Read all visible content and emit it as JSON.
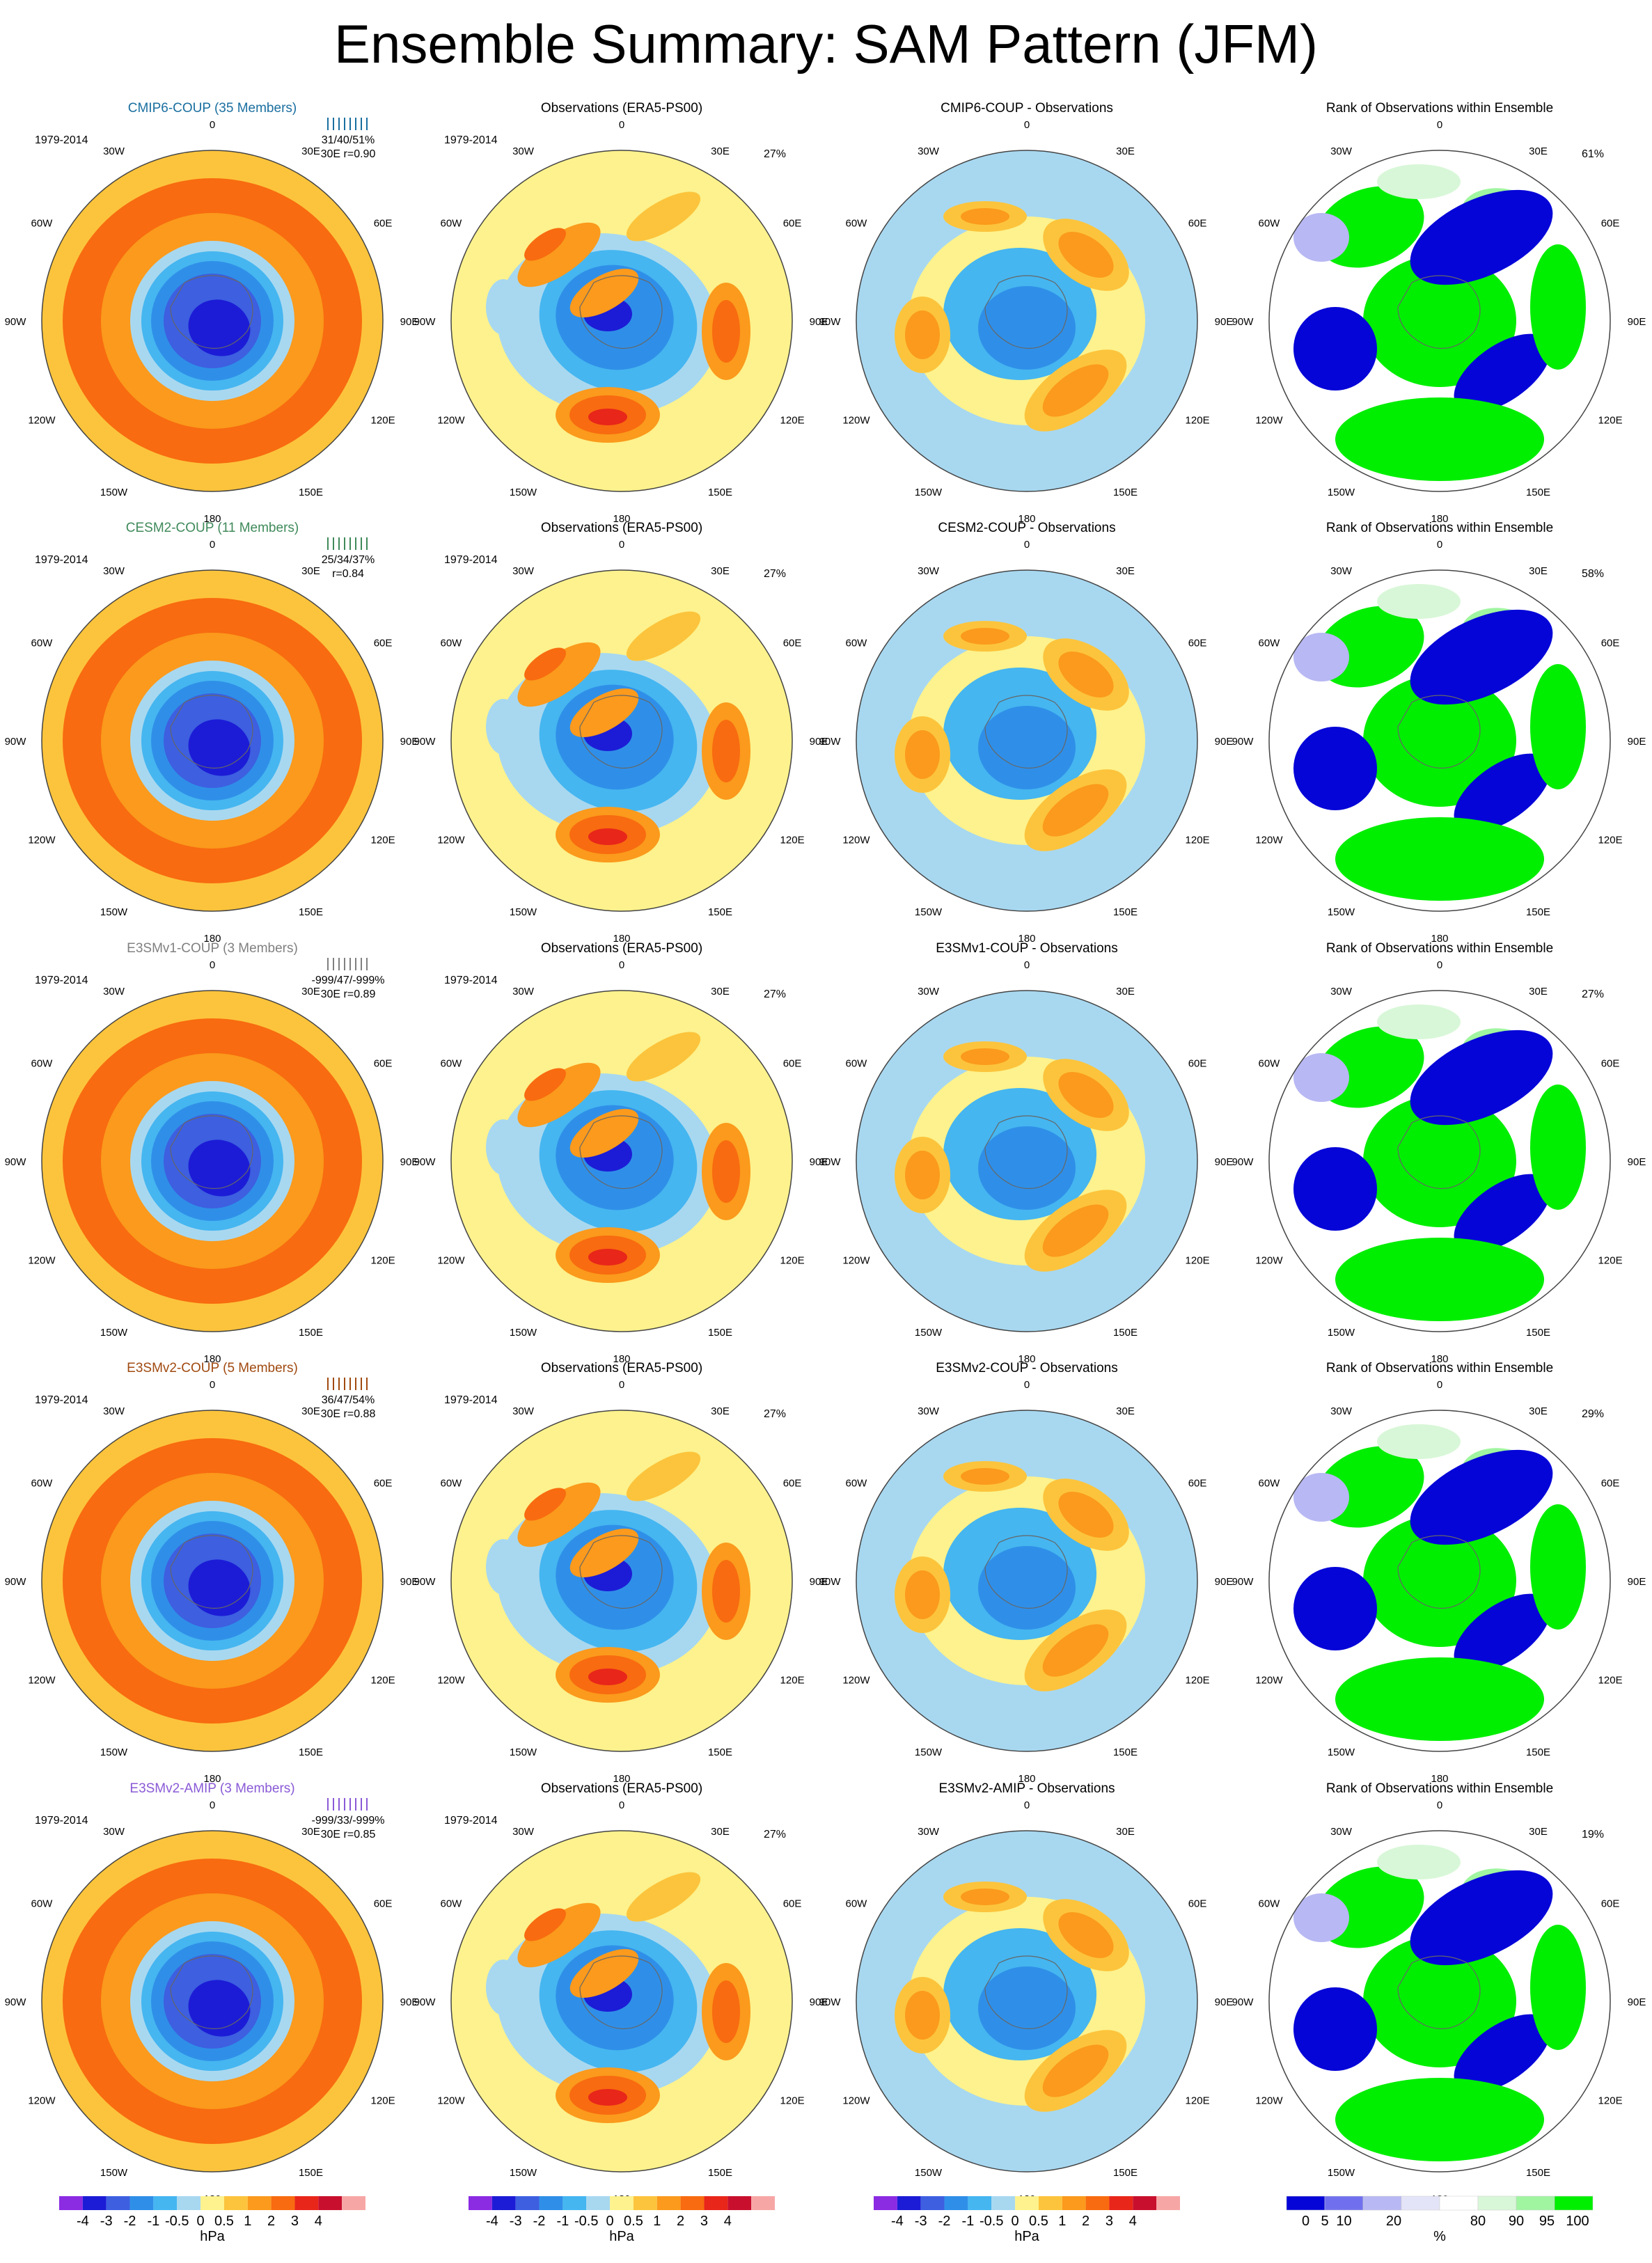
{
  "title": "Ensemble Summary: SAM Pattern (JFM)",
  "period": "1979-2014",
  "colors": {
    "diff": [
      "#8b2be2",
      "#1c1cd6",
      "#3d5fe0",
      "#2f8fe8",
      "#45b6f0",
      "#a8d8f0",
      "#fdf28d",
      "#fcc43c",
      "#fb9a1c",
      "#f86b10",
      "#e8261a",
      "#c8102e",
      "#f7a6a6"
    ],
    "rank": [
      "#0505d8",
      "#7070ee",
      "#b8b8f4",
      "#e4e4f8",
      "#ffffff",
      "#d8f7d8",
      "#a0f5a0",
      "#00ee00"
    ]
  },
  "colorbars": [
    {
      "unit": "hPa",
      "labels": [
        "-4",
        "-3",
        "-2",
        "-1",
        "-0.5",
        "0",
        "0.5",
        "1",
        "2",
        "3",
        "4"
      ]
    },
    {
      "unit": "hPa",
      "labels": [
        "-4",
        "-3",
        "-2",
        "-1",
        "-0.5",
        "0",
        "0.5",
        "1",
        "2",
        "3",
        "4"
      ]
    },
    {
      "unit": "hPa",
      "labels": [
        "-4",
        "-3",
        "-2",
        "-1",
        "-0.5",
        "0",
        "0.5",
        "1",
        "2",
        "3",
        "4"
      ]
    },
    {
      "unit": "%",
      "labels": [
        "0",
        "5",
        "10",
        "20",
        "80",
        "90",
        "95",
        "100"
      ]
    }
  ],
  "rows": [
    {
      "model": "CMIP6-COUP (35 Members)",
      "model_color": "#1a6fa0",
      "stats": "31/40/51%",
      "stats2": "30E r=0.90",
      "obs": "Observations (ERA5-PS00)",
      "obs_pct": "27%",
      "diff": "CMIP6-COUP - Observations",
      "rank": "Rank of Observations within Ensemble",
      "rank_pct": "61%"
    },
    {
      "model": "CESM2-COUP (11 Members)",
      "model_color": "#3f8a5a",
      "stats": "25/34/37%",
      "stats2": "r=0.84",
      "obs": "Observations (ERA5-PS00)",
      "obs_pct": "27%",
      "diff": "CESM2-COUP - Observations",
      "rank": "Rank of Observations within Ensemble",
      "rank_pct": "58%"
    },
    {
      "model": "E3SMv1-COUP (3 Members)",
      "model_color": "#808080",
      "stats": "-999/47/-999%",
      "stats2": "30E r=0.89",
      "obs": "Observations (ERA5-PS00)",
      "obs_pct": "27%",
      "diff": "E3SMv1-COUP - Observations",
      "rank": "Rank of Observations within Ensemble",
      "rank_pct": "27%"
    },
    {
      "model": "E3SMv2-COUP (5 Members)",
      "model_color": "#a04a10",
      "stats": "36/47/54%",
      "stats2": "30E r=0.88",
      "obs": "Observations (ERA5-PS00)",
      "obs_pct": "27%",
      "diff": "E3SMv2-COUP - Observations",
      "rank": "Rank of Observations within Ensemble",
      "rank_pct": "29%"
    },
    {
      "model": "E3SMv2-AMIP (3 Members)",
      "model_color": "#8a5ad6",
      "stats": "-999/33/-999%",
      "stats2": "30E r=0.85",
      "obs": "Observations (ERA5-PS00)",
      "obs_pct": "27%",
      "diff": "E3SMv2-AMIP - Observations",
      "rank": "Rank of Observations within Ensemble",
      "rank_pct": "19%"
    }
  ],
  "lon_labels": [
    "0",
    "30E",
    "60E",
    "90E",
    "120E",
    "150E",
    "180",
    "150W",
    "120W",
    "90W",
    "60W",
    "30W"
  ],
  "chart_data": {
    "type": "heatmap",
    "projection": "south polar stereographic",
    "variable": "SAM pattern (sea level pressure regression)",
    "units": "hPa",
    "contour_levels": [
      -4,
      -3,
      -2,
      -1,
      -0.5,
      0,
      0.5,
      1,
      2,
      3,
      4
    ],
    "rank_levels_percent": [
      0,
      5,
      10,
      20,
      80,
      90,
      95,
      100
    ],
    "columns": [
      "model ensemble",
      "observations",
      "model minus observations",
      "rank of observations"
    ],
    "rows": [
      "CMIP6-COUP",
      "CESM2-COUP",
      "E3SMv1-COUP",
      "E3SMv2-COUP",
      "E3SMv2-AMIP"
    ]
  }
}
